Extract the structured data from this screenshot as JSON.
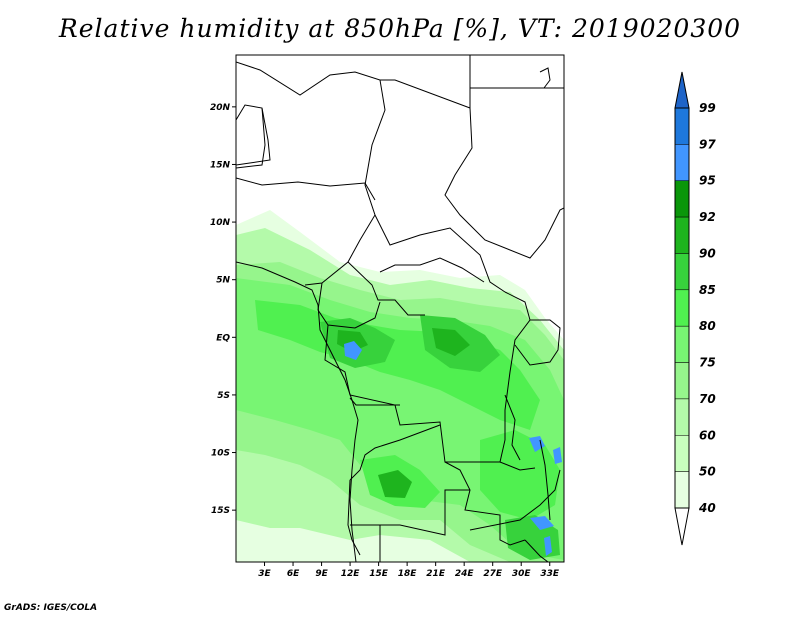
{
  "title": "Relative humidity at 850hPa [%], VT: 2019020300",
  "credit": "GrADS: IGES/COLA",
  "map": {
    "lat_ticks": [
      "20N",
      "15N",
      "10N",
      "5N",
      "EQ",
      "5S",
      "10S",
      "15S"
    ],
    "lon_ticks": [
      "3E",
      "6E",
      "9E",
      "12E",
      "15E",
      "18E",
      "21E",
      "24E",
      "27E",
      "30E",
      "33E"
    ],
    "lat_values": [
      20,
      15,
      10,
      5,
      0,
      -5,
      -10,
      -15
    ],
    "lon_values": [
      3,
      6,
      9,
      12,
      15,
      18,
      21,
      24,
      27,
      30,
      33
    ],
    "lat_range": [
      -19.5,
      24.5
    ],
    "lon_range": [
      0,
      34.5
    ]
  },
  "colorbar": {
    "levels": [
      "99",
      "97",
      "95",
      "92",
      "90",
      "85",
      "80",
      "75",
      "70",
      "60",
      "50",
      "40"
    ],
    "colors": [
      "#1e64c8",
      "#1e78dc",
      "#4196ff",
      "#0a960a",
      "#1eb41e",
      "#37d23c",
      "#50f050",
      "#78f573",
      "#96f58c",
      "#b4faaa",
      "#c8ffbe",
      "#e6ffe1",
      "#ffffff"
    ]
  }
}
